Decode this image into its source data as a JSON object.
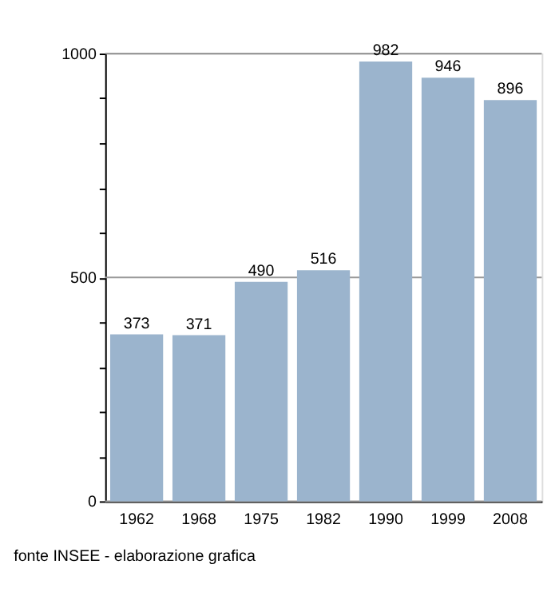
{
  "chart_data": {
    "type": "bar",
    "categories": [
      "1962",
      "1968",
      "1975",
      "1982",
      "1990",
      "1999",
      "2008"
    ],
    "series": [
      {
        "color": "#9bb4cd",
        "values": [
          373,
          371,
          490,
          516,
          982,
          946,
          896
        ]
      }
    ],
    "ylim": [
      0,
      1000
    ],
    "yticks": [
      0,
      {
        "value": 100,
        "label": null
      },
      {
        "value": 200,
        "label": null
      },
      {
        "value": 300,
        "label": null
      },
      {
        "value": 400,
        "label": null
      },
      500,
      {
        "value": 600,
        "label": null
      },
      {
        "value": 700,
        "label": null
      },
      {
        "value": 800,
        "label": null
      },
      {
        "value": 900,
        "label": null
      },
      1000
    ],
    "grid": "y",
    "data_labels": true,
    "annotations": [
      "fonte INSEE - elaborazione grafica"
    ]
  }
}
